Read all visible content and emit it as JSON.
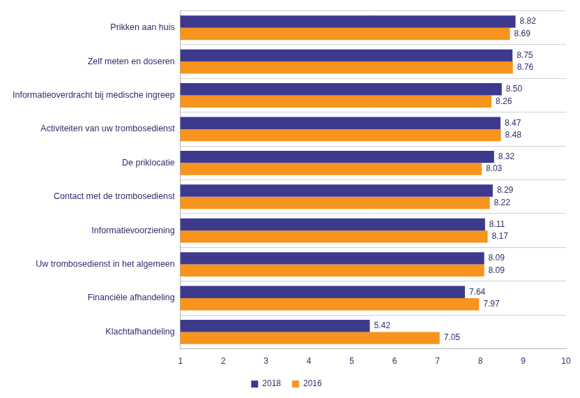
{
  "chart_data": {
    "type": "bar",
    "orientation": "horizontal",
    "categories": [
      "Prikken aan huis",
      "Zelf meten en doseren",
      "Informatieoverdracht bij medische ingreep",
      "Activiteiten van uw trombosedienst",
      "De priklocatie",
      "Contact met de trombosedienst",
      "Informatievoorziening",
      "Uw trombosedienst in het algemeen",
      "Financiële afhandeling",
      "Klachtafhandeling"
    ],
    "series": [
      {
        "name": "2018",
        "color": "#3d3a8e",
        "values": [
          8.82,
          8.75,
          8.5,
          8.47,
          8.32,
          8.29,
          8.11,
          8.09,
          7.64,
          5.42
        ],
        "value_labels": [
          "8.82",
          "8.75",
          "8.50",
          "8.47",
          "8.32",
          "8.29",
          "8.11",
          "8.09",
          "7.64",
          "5.42"
        ]
      },
      {
        "name": "2016",
        "color": "#f7941d",
        "values": [
          8.69,
          8.76,
          8.26,
          8.48,
          8.03,
          8.22,
          8.17,
          8.09,
          7.97,
          7.05
        ],
        "value_labels": [
          "8.69",
          "8.76",
          "8.26",
          "8.48",
          "8.03",
          "8.22",
          "8.17",
          "8.09",
          "7.97",
          "7.05"
        ]
      }
    ],
    "xlim": [
      1,
      10
    ],
    "xticks": [
      1,
      2,
      3,
      4,
      5,
      6,
      7,
      8,
      9,
      10
    ],
    "grid": true,
    "legend": "bottom",
    "data_labels": true
  }
}
